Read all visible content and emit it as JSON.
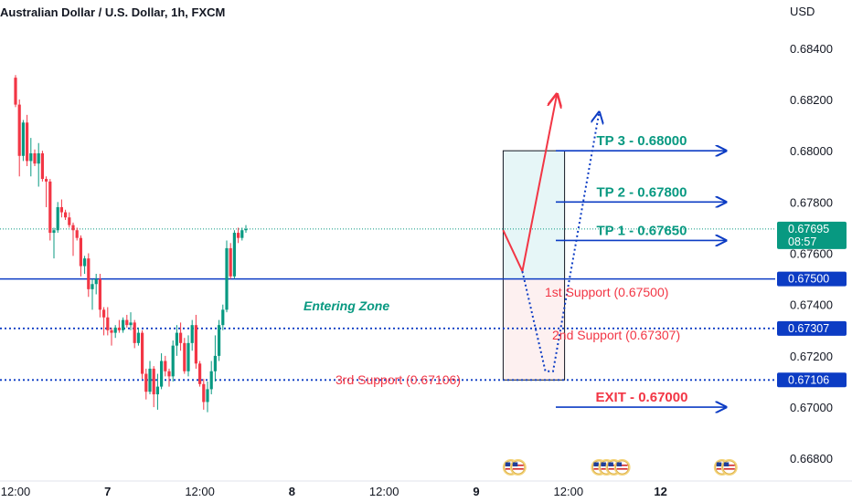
{
  "header": {
    "title": "Australian Dollar / U.S. Dollar, 1h, FXCM"
  },
  "chart_data": {
    "type": "candlestick",
    "currency_label": "USD",
    "y_ticks": [
      0.668,
      0.67,
      0.672,
      0.674,
      0.676,
      0.678,
      0.68,
      0.682,
      0.684
    ],
    "y_tick_labels": [
      "0.66800",
      "0.67000",
      "0.67200",
      "0.67400",
      "0.67600",
      "0.67800",
      "0.68000",
      "0.68200",
      "0.68400"
    ],
    "x_tick_labels": [
      "12:00",
      "7",
      "12:00",
      "8",
      "12:00",
      "9",
      "12:00",
      "12"
    ],
    "x_tick_index": [
      0,
      24,
      48,
      72,
      96,
      120,
      144,
      168
    ],
    "ylim": [
      0.6663,
      0.68588
    ],
    "colors": {
      "up": "#089981",
      "down": "#f23645",
      "level": "#0c3cc4",
      "arrow": "#0c3cc4"
    },
    "candles": [
      [
        0.68285,
        0.68295,
        0.6817,
        0.6818
      ],
      [
        0.6818,
        0.682,
        0.679,
        0.6798
      ],
      [
        0.6798,
        0.6812,
        0.6796,
        0.6811
      ],
      [
        0.6811,
        0.6814,
        0.6794,
        0.6796
      ],
      [
        0.6796,
        0.6805,
        0.679,
        0.6799
      ],
      [
        0.6799,
        0.68005,
        0.6794,
        0.6795
      ],
      [
        0.6795,
        0.6803,
        0.6786,
        0.6799
      ],
      [
        0.6799,
        0.68,
        0.6788,
        0.6789
      ],
      [
        0.6789,
        0.679,
        0.6778,
        0.6788
      ],
      [
        0.6788,
        0.6789,
        0.6765,
        0.6768
      ],
      [
        0.6768,
        0.677,
        0.6758,
        0.6769
      ],
      [
        0.6769,
        0.678,
        0.6768,
        0.6778
      ],
      [
        0.6778,
        0.6781,
        0.6774,
        0.6776
      ],
      [
        0.6776,
        0.6777,
        0.6773,
        0.6774
      ],
      [
        0.6774,
        0.6776,
        0.677,
        0.6771
      ],
      [
        0.6771,
        0.6772,
        0.6759,
        0.6769
      ],
      [
        0.6769,
        0.677,
        0.6765,
        0.6766
      ],
      [
        0.6766,
        0.6767,
        0.6751,
        0.6755
      ],
      [
        0.6755,
        0.6759,
        0.6752,
        0.6758
      ],
      [
        0.6758,
        0.676,
        0.6743,
        0.6746
      ],
      [
        0.6746,
        0.675,
        0.6738,
        0.6748
      ],
      [
        0.6748,
        0.6752,
        0.6744,
        0.675
      ],
      [
        0.675,
        0.6752,
        0.6735,
        0.6738
      ],
      [
        0.6738,
        0.6739,
        0.6728,
        0.6735
      ],
      [
        0.6735,
        0.6739,
        0.6728,
        0.673
      ],
      [
        0.673,
        0.6731,
        0.6724,
        0.6729
      ],
      [
        0.6729,
        0.6732,
        0.6727,
        0.6731
      ],
      [
        0.6731,
        0.6734,
        0.6729,
        0.673
      ],
      [
        0.673,
        0.6735,
        0.6729,
        0.6734
      ],
      [
        0.6734,
        0.6736,
        0.6731,
        0.6732
      ],
      [
        0.6732,
        0.6737,
        0.673,
        0.6733
      ],
      [
        0.6733,
        0.6734,
        0.6723,
        0.6725
      ],
      [
        0.6725,
        0.6731,
        0.6724,
        0.6729
      ],
      [
        0.6729,
        0.673,
        0.6711,
        0.6713
      ],
      [
        0.6713,
        0.6715,
        0.6703,
        0.6706
      ],
      [
        0.6706,
        0.6718,
        0.6705,
        0.6715
      ],
      [
        0.6715,
        0.6716,
        0.67,
        0.6705
      ],
      [
        0.6705,
        0.6713,
        0.6699,
        0.6708
      ],
      [
        0.6708,
        0.6721,
        0.6707,
        0.6718
      ],
      [
        0.6718,
        0.672,
        0.6712,
        0.6714
      ],
      [
        0.6714,
        0.6715,
        0.6708,
        0.6712
      ],
      [
        0.6712,
        0.6726,
        0.671,
        0.6724
      ],
      [
        0.6724,
        0.6732,
        0.672,
        0.6729
      ],
      [
        0.6729,
        0.6733,
        0.6722,
        0.6725
      ],
      [
        0.6725,
        0.6727,
        0.6713,
        0.6714
      ],
      [
        0.6714,
        0.6728,
        0.6712,
        0.6725
      ],
      [
        0.6725,
        0.6734,
        0.6722,
        0.6732
      ],
      [
        0.6732,
        0.6736,
        0.6715,
        0.6717
      ],
      [
        0.6717,
        0.6718,
        0.6708,
        0.6709
      ],
      [
        0.6709,
        0.6711,
        0.6699,
        0.6702
      ],
      [
        0.6702,
        0.671,
        0.6698,
        0.6707
      ],
      [
        0.6707,
        0.6718,
        0.6705,
        0.6714
      ],
      [
        0.6714,
        0.6728,
        0.671,
        0.672
      ],
      [
        0.672,
        0.6734,
        0.6718,
        0.6732
      ],
      [
        0.6732,
        0.674,
        0.673,
        0.6738
      ],
      [
        0.6738,
        0.6765,
        0.6737,
        0.6762
      ],
      [
        0.6762,
        0.6764,
        0.675,
        0.6751
      ],
      [
        0.6751,
        0.6769,
        0.675,
        0.6768
      ],
      [
        0.6768,
        0.677,
        0.6764,
        0.6766
      ],
      [
        0.6766,
        0.677,
        0.6765,
        0.6769
      ],
      [
        0.6769,
        0.6771,
        0.6768,
        0.67695
      ]
    ],
    "current_price": {
      "value": 0.67695,
      "label": "0.67695",
      "countdown": "08:57"
    },
    "levels": [
      {
        "name": "level-support-1",
        "value": 0.675,
        "style": "solid",
        "badge": "0.67500"
      },
      {
        "name": "level-support-2",
        "value": 0.67307,
        "style": "dotted",
        "badge": "0.67307"
      },
      {
        "name": "level-support-3",
        "value": 0.67106,
        "style": "dotted",
        "badge": "0.67106"
      }
    ],
    "zone": {
      "x_start_index": 127,
      "x_end_index": 143,
      "top": 0.68,
      "mid": 0.675,
      "bottom": 0.67106
    },
    "targets": [
      {
        "label": "TP 3 - 0.68000",
        "value": 0.68,
        "kind": "tp"
      },
      {
        "label": "TP 2 - 0.67800",
        "value": 0.678,
        "kind": "tp"
      },
      {
        "label": "TP 1 - 0.67650",
        "value": 0.6765,
        "kind": "tp"
      },
      {
        "label": "EXIT - 0.67000",
        "value": 0.67,
        "kind": "exit"
      }
    ],
    "annotations": {
      "entering_zone": "Entering Zone",
      "support_1": "1st Support (0.67500)",
      "support_2": "2nd Support (0.67307)",
      "support_3": "3rd Support (0.67106)"
    },
    "forecast_solid": [
      [
        127,
        0.6769
      ],
      [
        132,
        0.6753
      ],
      [
        141,
        0.6822
      ]
    ],
    "forecast_dotted": [
      [
        132,
        0.6753
      ],
      [
        138,
        0.6714
      ],
      [
        140,
        0.6714
      ],
      [
        152,
        0.6815
      ]
    ],
    "event_flags": [
      {
        "index": 129,
        "count": 2
      },
      {
        "index": 152,
        "count": 3
      },
      {
        "index": 158,
        "count": 1
      },
      {
        "index": 184,
        "count": 2
      }
    ]
  }
}
